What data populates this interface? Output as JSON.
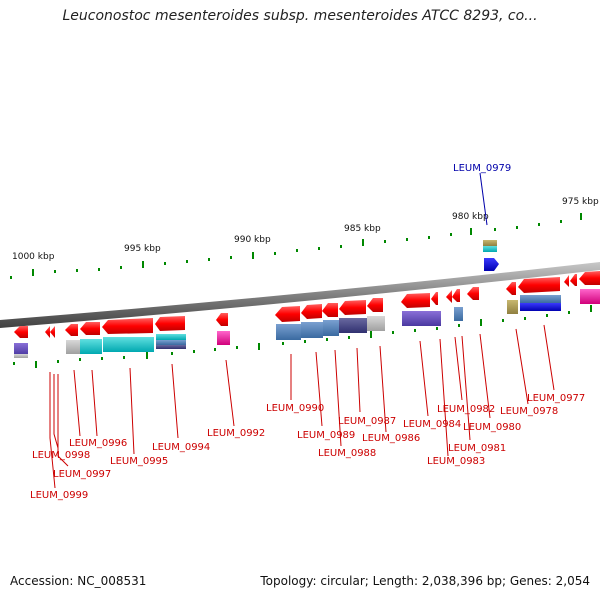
{
  "title": "Leuconostoc mesenteroides subsp. mesenteroides ATCC 8293, co...",
  "scale_ticks": [
    "1000 kbp",
    "995 kbp",
    "990 kbp",
    "985 kbp",
    "980 kbp",
    "975 kbp"
  ],
  "gene_labels": [
    {
      "id": "LEUM_0999",
      "color": "#cc0000"
    },
    {
      "id": "LEUM_0998",
      "color": "#cc0000"
    },
    {
      "id": "LEUM_0997",
      "color": "#cc0000"
    },
    {
      "id": "LEUM_0996",
      "color": "#cc0000"
    },
    {
      "id": "LEUM_0995",
      "color": "#cc0000"
    },
    {
      "id": "LEUM_0994",
      "color": "#cc0000"
    },
    {
      "id": "LEUM_0992",
      "color": "#cc0000"
    },
    {
      "id": "LEUM_0990",
      "color": "#cc0000"
    },
    {
      "id": "LEUM_0989",
      "color": "#cc0000"
    },
    {
      "id": "LEUM_0988",
      "color": "#cc0000"
    },
    {
      "id": "LEUM_0987",
      "color": "#cc0000"
    },
    {
      "id": "LEUM_0986",
      "color": "#cc0000"
    },
    {
      "id": "LEUM_0984",
      "color": "#cc0000"
    },
    {
      "id": "LEUM_0983",
      "color": "#cc0000"
    },
    {
      "id": "LEUM_0982",
      "color": "#cc0000"
    },
    {
      "id": "LEUM_0981",
      "color": "#cc0000"
    },
    {
      "id": "LEUM_0980",
      "color": "#cc0000"
    },
    {
      "id": "LEUM_0978",
      "color": "#cc0000"
    },
    {
      "id": "LEUM_0977",
      "color": "#cc0000"
    },
    {
      "id": "LEUM_0979",
      "color": "#0000aa"
    }
  ],
  "footer": {
    "accession": "Accession: NC_008531",
    "summary": "Topology: circular; Length: 2,038,396 bp; Genes: 2,054"
  },
  "colors": {
    "gene_red": "#ff0000",
    "backbone": "#888888",
    "tick_green": "#008800",
    "label_red": "#cc0000",
    "label_blue": "#0000aa"
  }
}
